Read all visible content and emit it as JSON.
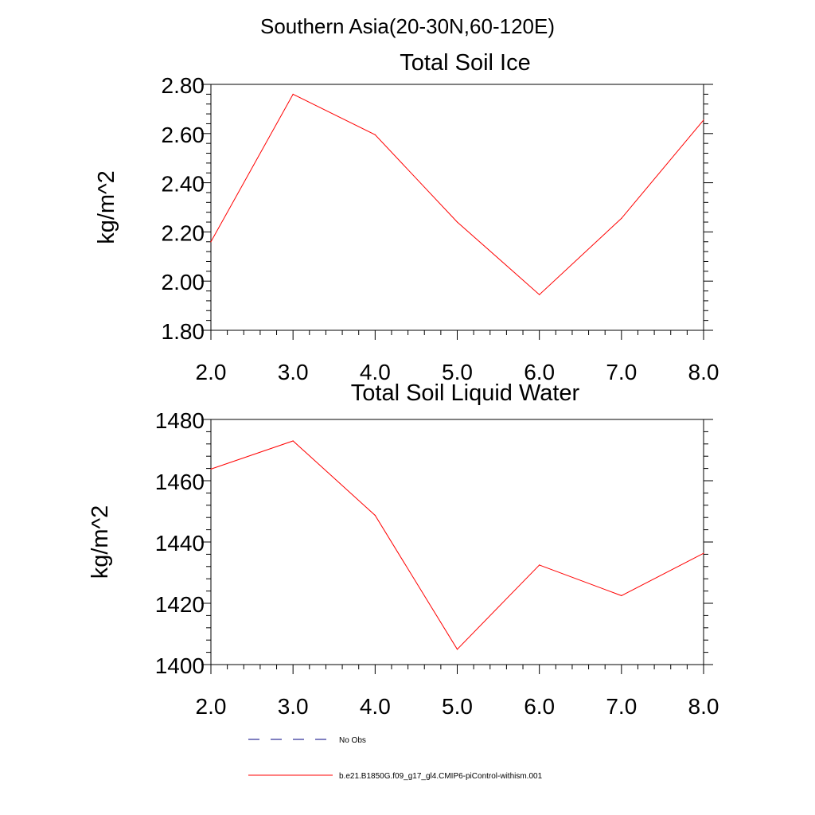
{
  "figure_title": "Southern Asia(20-30N,60-120E)",
  "colors": {
    "model_line": "#ff0000",
    "obs_line": "#000080",
    "axis": "#000000"
  },
  "legend": {
    "items": [
      {
        "label": "No Obs",
        "style": "dashed",
        "color": "#000080"
      },
      {
        "label": "b.e21.B1850G.f09_g17_gl4.CMIP6-piControl-withism.001",
        "style": "solid",
        "color": "#ff0000"
      }
    ]
  },
  "chart_data": [
    {
      "type": "line",
      "title": "Total Soil Ice",
      "xlabel": "",
      "ylabel": "kg/m^2",
      "xlim": [
        2.0,
        8.0
      ],
      "ylim": [
        1.8,
        2.8
      ],
      "x_ticks": [
        "2.0",
        "3.0",
        "4.0",
        "5.0",
        "6.0",
        "7.0",
        "8.0"
      ],
      "y_ticks": [
        "1.80",
        "2.00",
        "2.20",
        "2.40",
        "2.60",
        "2.80"
      ],
      "x": [
        2.0,
        3.0,
        4.0,
        5.0,
        6.0,
        7.0,
        8.0
      ],
      "series": [
        {
          "name": "b.e21.B1850G.f09_g17_gl4.CMIP6-piControl-withism.001",
          "color": "#ff0000",
          "values": [
            2.16,
            2.76,
            2.595,
            2.24,
            1.945,
            2.255,
            2.655
          ]
        }
      ],
      "grid": false
    },
    {
      "type": "line",
      "title": "Total Soil Liquid Water",
      "xlabel": "",
      "ylabel": "kg/m^2",
      "xlim": [
        2.0,
        8.0
      ],
      "ylim": [
        1400,
        1480
      ],
      "x_ticks": [
        "2.0",
        "3.0",
        "4.0",
        "5.0",
        "6.0",
        "7.0",
        "8.0"
      ],
      "y_ticks": [
        "1400",
        "1420",
        "1440",
        "1460",
        "1480"
      ],
      "x": [
        2.0,
        3.0,
        4.0,
        5.0,
        6.0,
        7.0,
        8.0
      ],
      "series": [
        {
          "name": "b.e21.B1850G.f09_g17_gl4.CMIP6-piControl-withism.001",
          "color": "#ff0000",
          "values": [
            1463.8,
            1473.0,
            1448.7,
            1405.0,
            1432.5,
            1422.5,
            1436.3
          ]
        }
      ],
      "grid": false
    }
  ]
}
